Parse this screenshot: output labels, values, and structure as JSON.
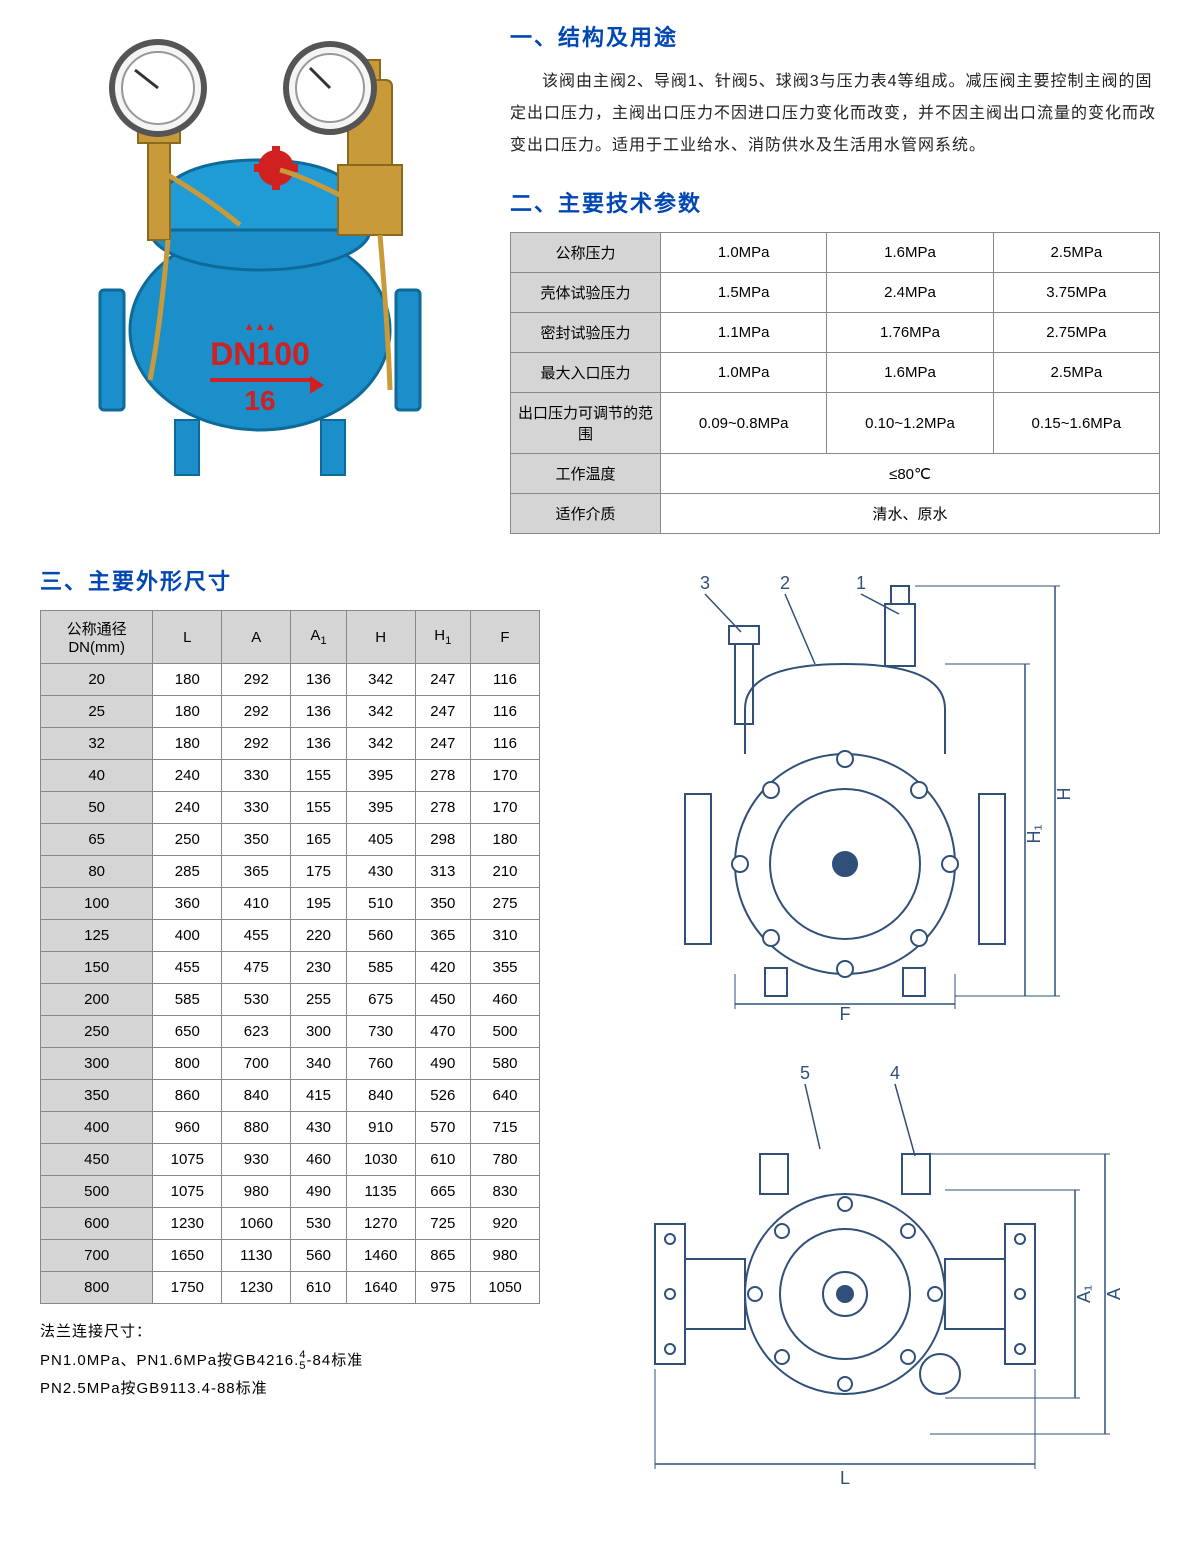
{
  "colors": {
    "heading": "#0047b3",
    "table_header_bg": "#d5d5d5",
    "border": "#888888",
    "text": "#000000",
    "valve_body": "#1a8fc9",
    "valve_brass": "#c99a3a",
    "valve_red": "#d02020",
    "drawing_stroke": "#30507a"
  },
  "section1": {
    "title": "一、结构及用途",
    "body": "该阀由主阀2、导阀1、针阀5、球阀3与压力表4等组成。减压阀主要控制主阀的固定出口压力，主阀出口压力不因进口压力变化而改变，并不因主阀出口流量的变化而改变出口压力。适用于工业给水、消防供水及生活用水管网系统。"
  },
  "section2": {
    "title": "二、主要技术参数",
    "rows": [
      {
        "label": "公称压力",
        "vals": [
          "1.0MPa",
          "1.6MPa",
          "2.5MPa"
        ]
      },
      {
        "label": "壳体试验压力",
        "vals": [
          "1.5MPa",
          "2.4MPa",
          "3.75MPa"
        ]
      },
      {
        "label": "密封试验压力",
        "vals": [
          "1.1MPa",
          "1.76MPa",
          "2.75MPa"
        ]
      },
      {
        "label": "最大入口压力",
        "vals": [
          "1.0MPa",
          "1.6MPa",
          "2.5MPa"
        ]
      },
      {
        "label": "出口压力可调节的范围",
        "vals": [
          "0.09~0.8MPa",
          "0.10~1.2MPa",
          "0.15~1.6MPa"
        ]
      }
    ],
    "merged_rows": [
      {
        "label": "工作温度",
        "val": "≤80℃"
      },
      {
        "label": "适作介质",
        "val": "清水、原水"
      }
    ]
  },
  "section3": {
    "title": "三、主要外形尺寸",
    "headers": [
      "公称通径 DN(mm)",
      "L",
      "A",
      "A",
      "H",
      "H",
      "F"
    ],
    "header_sub": [
      "",
      "",
      "",
      "1",
      "",
      "1",
      ""
    ],
    "rows": [
      [
        "20",
        "180",
        "292",
        "136",
        "342",
        "247",
        "116"
      ],
      [
        "25",
        "180",
        "292",
        "136",
        "342",
        "247",
        "116"
      ],
      [
        "32",
        "180",
        "292",
        "136",
        "342",
        "247",
        "116"
      ],
      [
        "40",
        "240",
        "330",
        "155",
        "395",
        "278",
        "170"
      ],
      [
        "50",
        "240",
        "330",
        "155",
        "395",
        "278",
        "170"
      ],
      [
        "65",
        "250",
        "350",
        "165",
        "405",
        "298",
        "180"
      ],
      [
        "80",
        "285",
        "365",
        "175",
        "430",
        "313",
        "210"
      ],
      [
        "100",
        "360",
        "410",
        "195",
        "510",
        "350",
        "275"
      ],
      [
        "125",
        "400",
        "455",
        "220",
        "560",
        "365",
        "310"
      ],
      [
        "150",
        "455",
        "475",
        "230",
        "585",
        "420",
        "355"
      ],
      [
        "200",
        "585",
        "530",
        "255",
        "675",
        "450",
        "460"
      ],
      [
        "250",
        "650",
        "623",
        "300",
        "730",
        "470",
        "500"
      ],
      [
        "300",
        "800",
        "700",
        "340",
        "760",
        "490",
        "580"
      ],
      [
        "350",
        "860",
        "840",
        "415",
        "840",
        "526",
        "640"
      ],
      [
        "400",
        "960",
        "880",
        "430",
        "910",
        "570",
        "715"
      ],
      [
        "450",
        "1075",
        "930",
        "460",
        "1030",
        "610",
        "780"
      ],
      [
        "500",
        "1075",
        "980",
        "490",
        "1135",
        "665",
        "830"
      ],
      [
        "600",
        "1230",
        "1060",
        "530",
        "1270",
        "725",
        "920"
      ],
      [
        "700",
        "1650",
        "1130",
        "560",
        "1460",
        "865",
        "980"
      ],
      [
        "800",
        "1750",
        "1230",
        "610",
        "1640",
        "975",
        "1050"
      ]
    ]
  },
  "footnotes": {
    "l1": "法兰连接尺寸：",
    "l2_pre": "PN1.0MPa、PN1.6MPa按GB4216.",
    "l2_frac_top": "4",
    "l2_frac_bot": "5",
    "l2_post": "-84标准",
    "l3": "PN2.5MPa按GB9113.4-88标准"
  },
  "valve_label": {
    "dn": "DN100",
    "pn": "16"
  },
  "drawing1_callouts": [
    "3",
    "2",
    "1"
  ],
  "drawing1_dims": [
    "H",
    "H₁",
    "F"
  ],
  "drawing2_callouts": [
    "5",
    "4"
  ],
  "drawing2_dims": [
    "A",
    "A₁",
    "L"
  ]
}
